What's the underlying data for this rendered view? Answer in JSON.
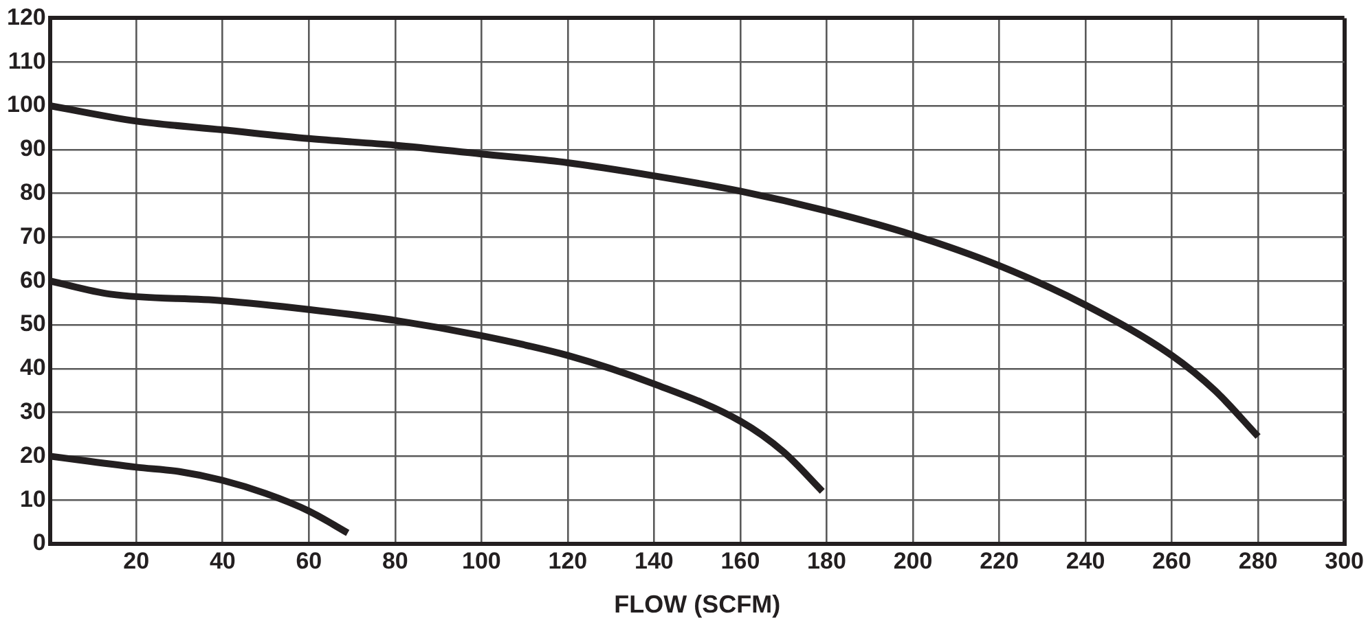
{
  "chart_data": {
    "type": "line",
    "xlabel": "FLOW (SCFM)",
    "series": [
      {
        "color": "#231f20",
        "x": [
          0,
          20,
          40,
          60,
          80,
          100,
          120,
          140,
          160,
          180,
          200,
          220,
          240,
          260,
          270,
          280
        ],
        "values": [
          100,
          96.5,
          94.5,
          92.5,
          91,
          89,
          87,
          84,
          80.5,
          76,
          70.5,
          63.5,
          54.5,
          43,
          35,
          24.5
        ]
      },
      {
        "color": "#231f20",
        "x": [
          0,
          14,
          40,
          60,
          80,
          100,
          120,
          140,
          160,
          170,
          179
        ],
        "values": [
          60,
          57,
          55.5,
          53.5,
          51,
          47.5,
          43,
          36.5,
          28,
          21,
          12
        ]
      },
      {
        "color": "#231f20",
        "x": [
          0,
          20,
          30,
          40,
          50,
          60,
          69
        ],
        "values": [
          20,
          17.5,
          16.5,
          14.5,
          11.5,
          7.5,
          2.5
        ]
      }
    ],
    "xlim": [
      0,
      300
    ],
    "xticks": [
      {
        "value": 0,
        "label": null
      },
      20,
      40,
      60,
      80,
      100,
      120,
      140,
      160,
      180,
      200,
      220,
      240,
      260,
      280,
      300
    ],
    "ylim": [
      0,
      120
    ],
    "yticks": [
      0,
      10,
      20,
      30,
      40,
      50,
      60,
      70,
      80,
      90,
      100,
      110,
      120
    ],
    "grid": true,
    "legend": false,
    "marker": "none",
    "line_style": "solid"
  }
}
